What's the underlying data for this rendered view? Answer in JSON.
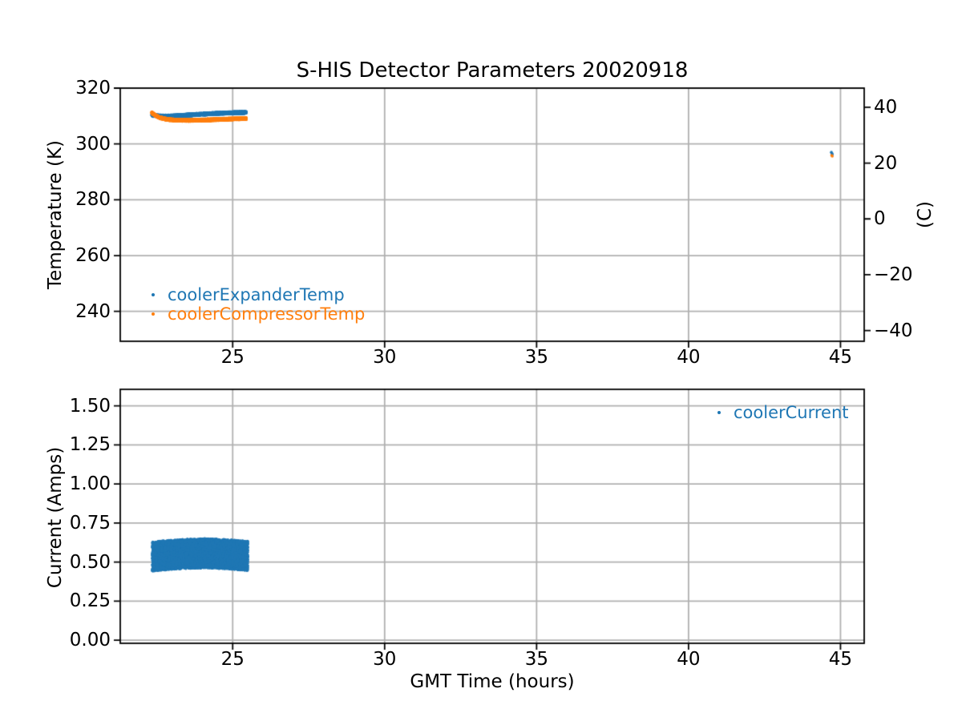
{
  "chart_data": [
    {
      "type": "scatter",
      "title": "S-HIS Detector Parameters 20020918",
      "xlabel": "",
      "ylabel": "Temperature (K)",
      "ylabel_right": "(C)",
      "xlim": [
        21.3,
        45.78
      ],
      "ylim": [
        229.3,
        320
      ],
      "ylim_right": [
        -43.85,
        46.85
      ],
      "grid": true,
      "grid_color": "#b0b0b0",
      "xticks": {
        "values": [
          25,
          30,
          35,
          40,
          45
        ],
        "labels": [
          "25",
          "30",
          "35",
          "40",
          "45"
        ]
      },
      "yticks": {
        "values": [
          240,
          260,
          280,
          300,
          320
        ],
        "labels": [
          "240",
          "260",
          "280",
          "300",
          "320"
        ]
      },
      "yticks_right": {
        "values": [
          -40,
          -20,
          0,
          20,
          40
        ],
        "labels": [
          "−40",
          "−20",
          "0",
          "20",
          "40"
        ]
      },
      "legend": {
        "location": "lower left",
        "labelcolor": "linecolor"
      },
      "series": [
        {
          "name": "coolerExpanderTemp",
          "color": "#1f77b4",
          "marker": "point",
          "cluster": {
            "x_range": [
              22.33,
              25.45
            ],
            "trend": [
              [
                22.33,
                310.3
              ],
              [
                22.6,
                310.0
              ],
              [
                22.9,
                309.95
              ],
              [
                23.3,
                310.2
              ],
              [
                23.8,
                310.55
              ],
              [
                24.3,
                310.85
              ],
              [
                24.8,
                311.1
              ],
              [
                25.45,
                311.3
              ]
            ],
            "y_spread": 0.45,
            "n_points": 3500
          },
          "isolated_points": [
            [
              44.7,
              297.0
            ],
            [
              44.72,
              296.6
            ],
            [
              44.73,
              296.25
            ]
          ]
        },
        {
          "name": "coolerCompressorTemp",
          "color": "#ff7f0e",
          "marker": "point",
          "cluster": {
            "x_range": [
              22.33,
              25.45
            ],
            "trend": [
              [
                22.33,
                311.2
              ],
              [
                22.45,
                310.3
              ],
              [
                22.6,
                309.4
              ],
              [
                22.85,
                308.8
              ],
              [
                23.15,
                308.5
              ],
              [
                23.6,
                308.45
              ],
              [
                24.1,
                308.6
              ],
              [
                24.6,
                308.8
              ],
              [
                25.1,
                309.0
              ],
              [
                25.45,
                309.1
              ]
            ],
            "y_spread": 0.42,
            "n_points": 3500
          },
          "isolated_points": [
            [
              44.71,
              295.9
            ],
            [
              44.73,
              295.6
            ]
          ]
        }
      ]
    },
    {
      "type": "scatter",
      "title": "",
      "xlabel": "GMT Time (hours)",
      "ylabel": "Current (Amps)",
      "xlim": [
        21.3,
        45.78
      ],
      "ylim": [
        -0.02,
        1.606
      ],
      "grid": true,
      "grid_color": "#b0b0b0",
      "xticks": {
        "values": [
          25,
          30,
          35,
          40,
          45
        ],
        "labels": [
          "25",
          "30",
          "35",
          "40",
          "45"
        ]
      },
      "yticks": {
        "values": [
          0,
          0.25,
          0.5,
          0.75,
          1.0,
          1.25,
          1.5
        ],
        "labels": [
          "0.00",
          "0.25",
          "0.50",
          "0.75",
          "1.00",
          "1.25",
          "1.50"
        ]
      },
      "legend": {
        "location": "upper right",
        "labelcolor": "linecolor"
      },
      "series": [
        {
          "name": "coolerCurrent",
          "color": "#1f77b4",
          "marker": "point",
          "cluster": {
            "x_range": [
              22.35,
              25.5
            ],
            "trend": [
              [
                22.35,
                0.535
              ],
              [
                22.9,
                0.545
              ],
              [
                23.5,
                0.553
              ],
              [
                24.1,
                0.556
              ],
              [
                24.7,
                0.552
              ],
              [
                25.5,
                0.54
              ]
            ],
            "y_spread": 0.095,
            "n_points": 7000
          },
          "isolated_points": []
        }
      ]
    }
  ]
}
